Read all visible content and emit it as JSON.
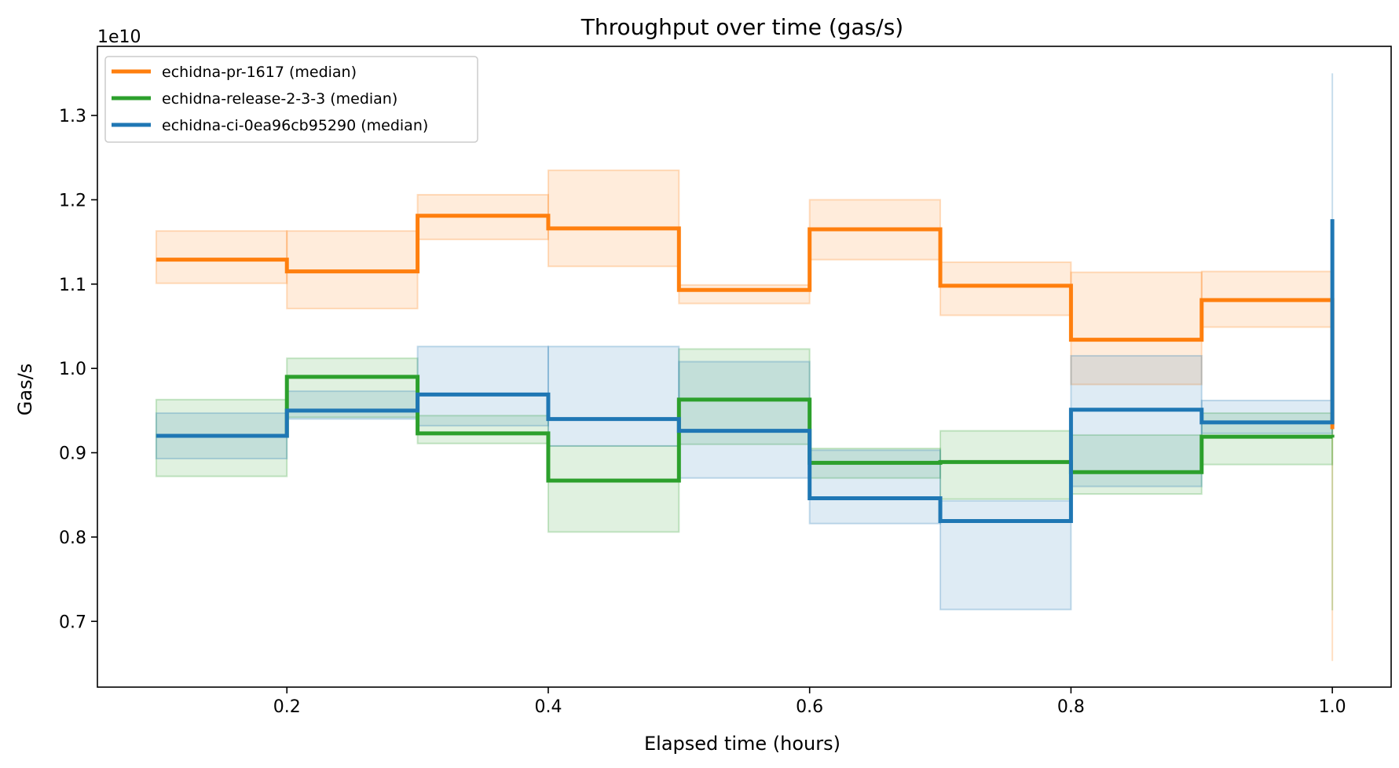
{
  "chart_data": {
    "type": "line",
    "title": "Throughput over time (gas/s)",
    "xlabel": "Elapsed time (hours)",
    "ylabel": "Gas/s",
    "y_offset_label": "1e10",
    "xlim": [
      0.055,
      1.045
    ],
    "ylim": [
      0.622,
      1.382
    ],
    "x_ticks": [
      0.2,
      0.4,
      0.6,
      0.8,
      1.0
    ],
    "x_tick_labels": [
      "0.2",
      "0.4",
      "0.6",
      "0.8",
      "1.0"
    ],
    "y_ticks": [
      0.7,
      0.8,
      0.9,
      1.0,
      1.1,
      1.2,
      1.3
    ],
    "y_tick_labels": [
      "0.7",
      "0.8",
      "0.9",
      "1.0",
      "1.1",
      "1.2",
      "1.3"
    ],
    "grid": false,
    "legend_position": "upper-left",
    "x_edges": [
      0.1,
      0.2,
      0.3,
      0.4,
      0.5,
      0.6,
      0.7,
      0.8,
      0.9,
      1.0
    ],
    "series": [
      {
        "name": "echidna-pr-1617 (median)",
        "color": "#ff7f0e",
        "median": [
          1.129,
          1.115,
          1.181,
          1.166,
          1.093,
          1.165,
          1.098,
          1.034,
          1.081
        ],
        "band_low": [
          1.101,
          1.071,
          1.153,
          1.121,
          1.077,
          1.129,
          1.063,
          0.981,
          1.049
        ],
        "band_high": [
          1.163,
          1.163,
          1.206,
          1.235,
          1.099,
          1.2,
          1.126,
          1.114,
          1.115
        ],
        "end_value": 0.928,
        "end_low": 0.653,
        "end_high": 0.93
      },
      {
        "name": "echidna-release-2-3-3 (median)",
        "color": "#2ca02c",
        "median": [
          0.92,
          0.99,
          0.923,
          0.867,
          0.963,
          0.888,
          0.889,
          0.877,
          0.919
        ],
        "band_low": [
          0.872,
          0.942,
          0.911,
          0.806,
          0.91,
          0.87,
          0.845,
          0.851,
          0.886
        ],
        "band_high": [
          0.963,
          1.012,
          0.944,
          0.908,
          1.023,
          0.905,
          0.926,
          0.921,
          0.947
        ],
        "end_value": 0.918,
        "end_low": 0.713,
        "end_high": 0.93
      },
      {
        "name": "echidna-ci-0ea96cb95290 (median)",
        "color": "#1f77b4",
        "median": [
          0.92,
          0.95,
          0.969,
          0.94,
          0.926,
          0.846,
          0.819,
          0.951,
          0.936
        ],
        "band_low": [
          0.893,
          0.94,
          0.932,
          0.908,
          0.87,
          0.816,
          0.714,
          0.86,
          0.923
        ],
        "band_high": [
          0.947,
          0.973,
          1.026,
          1.026,
          1.008,
          0.903,
          0.843,
          1.015,
          0.962
        ],
        "end_value": 1.177,
        "end_low": 0.93,
        "end_high": 1.35
      }
    ]
  }
}
